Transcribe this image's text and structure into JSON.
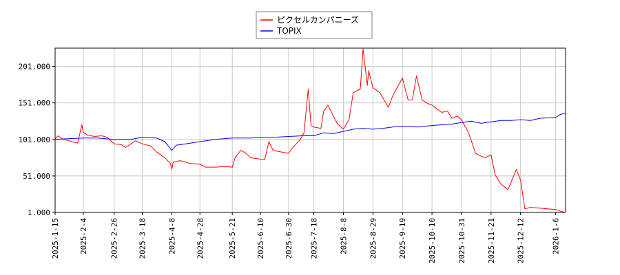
{
  "chart_data": {
    "type": "line",
    "legend_position": "top-center",
    "grid": true,
    "ylim": [
      1.0,
      226.0
    ],
    "y_ticks": [
      "1.000",
      "51.000",
      "101.000",
      "151.000",
      "201.000"
    ],
    "x_ticks": [
      "2025-1-15",
      "2025-2-4",
      "2025-2-26",
      "2025-3-18",
      "2025-4-8",
      "2025-4-28",
      "2025-5-21",
      "2025-6-10",
      "2025-6-30",
      "2025-7-18",
      "2025-8-8",
      "2025-8-29",
      "2025-9-19",
      "2025-10-10",
      "2025-10-31",
      "2025-11-21",
      "2025-12-12",
      "2026-1-6"
    ],
    "series": [
      {
        "name": "ピクセルカンパニーズ",
        "color": "#ff0000",
        "points": [
          [
            "2025-1-15",
            101
          ],
          [
            "2025-1-17",
            106
          ],
          [
            "2025-1-21",
            101
          ],
          [
            "2025-1-27",
            98
          ],
          [
            "2025-1-31",
            96
          ],
          [
            "2025-2-3",
            121
          ],
          [
            "2025-2-4",
            111
          ],
          [
            "2025-2-7",
            107
          ],
          [
            "2025-2-12",
            105
          ],
          [
            "2025-2-17",
            106
          ],
          [
            "2025-2-21",
            104
          ],
          [
            "2025-2-26",
            95
          ],
          [
            "2025-3-3",
            94
          ],
          [
            "2025-3-6",
            90
          ],
          [
            "2025-3-10",
            95
          ],
          [
            "2025-3-13",
            99
          ],
          [
            "2025-3-18",
            95
          ],
          [
            "2025-3-24",
            92
          ],
          [
            "2025-3-28",
            84
          ],
          [
            "2025-4-3",
            76
          ],
          [
            "2025-4-7",
            68
          ],
          [
            "2025-4-8",
            60
          ],
          [
            "2025-4-9",
            70
          ],
          [
            "2025-4-14",
            72
          ],
          [
            "2025-4-21",
            68
          ],
          [
            "2025-4-28",
            67
          ],
          [
            "2025-5-2",
            63
          ],
          [
            "2025-5-9",
            63
          ],
          [
            "2025-5-16",
            64
          ],
          [
            "2025-5-21",
            63
          ],
          [
            "2025-5-23",
            76
          ],
          [
            "2025-5-27",
            86
          ],
          [
            "2025-5-30",
            83
          ],
          [
            "2025-6-3",
            76
          ],
          [
            "2025-6-6",
            75
          ],
          [
            "2025-6-10",
            74
          ],
          [
            "2025-6-13",
            73
          ],
          [
            "2025-6-16",
            98
          ],
          [
            "2025-6-19",
            86
          ],
          [
            "2025-6-24",
            84
          ],
          [
            "2025-6-30",
            82
          ],
          [
            "2025-7-3",
            90
          ],
          [
            "2025-7-8",
            100
          ],
          [
            "2025-7-11",
            110
          ],
          [
            "2025-7-14",
            170
          ],
          [
            "2025-7-16",
            120
          ],
          [
            "2025-7-18",
            118
          ],
          [
            "2025-7-23",
            116
          ],
          [
            "2025-7-25",
            140
          ],
          [
            "2025-7-28",
            148
          ],
          [
            "2025-8-1",
            132
          ],
          [
            "2025-8-4",
            122
          ],
          [
            "2025-8-8",
            115
          ],
          [
            "2025-8-12",
            128
          ],
          [
            "2025-8-15",
            165
          ],
          [
            "2025-8-20",
            170
          ],
          [
            "2025-8-22",
            225
          ],
          [
            "2025-8-25",
            175
          ],
          [
            "2025-8-26",
            195
          ],
          [
            "2025-8-29",
            172
          ],
          [
            "2025-9-3",
            165
          ],
          [
            "2025-9-9",
            145
          ],
          [
            "2025-9-12",
            160
          ],
          [
            "2025-9-16",
            175
          ],
          [
            "2025-9-19",
            185
          ],
          [
            "2025-9-23",
            155
          ],
          [
            "2025-9-26",
            155
          ],
          [
            "2025-9-29",
            188
          ],
          [
            "2025-10-3",
            155
          ],
          [
            "2025-10-7",
            150
          ],
          [
            "2025-10-10",
            148
          ],
          [
            "2025-10-14",
            142
          ],
          [
            "2025-10-17",
            138
          ],
          [
            "2025-10-21",
            140
          ],
          [
            "2025-10-24",
            130
          ],
          [
            "2025-10-28",
            133
          ],
          [
            "2025-10-31",
            128
          ],
          [
            "2025-11-5",
            110
          ],
          [
            "2025-11-10",
            82
          ],
          [
            "2025-11-14",
            78
          ],
          [
            "2025-11-17",
            76
          ],
          [
            "2025-11-21",
            80
          ],
          [
            "2025-11-24",
            52
          ],
          [
            "2025-11-28",
            40
          ],
          [
            "2025-12-3",
            32
          ],
          [
            "2025-12-9",
            60
          ],
          [
            "2025-12-12",
            45
          ],
          [
            "2025-12-15",
            6
          ],
          [
            "2025-12-19",
            8
          ],
          [
            "2025-12-25",
            7
          ],
          [
            "2025-12-31",
            6
          ],
          [
            "2026-1-6",
            5
          ],
          [
            "2026-1-9",
            3
          ],
          [
            "2026-1-13",
            1
          ]
        ]
      },
      {
        "name": "TOPIX",
        "color": "#0000ff",
        "points": [
          [
            "2025-1-15",
            101
          ],
          [
            "2025-1-24",
            102
          ],
          [
            "2025-2-4",
            103
          ],
          [
            "2025-2-14",
            103
          ],
          [
            "2025-2-26",
            101
          ],
          [
            "2025-3-10",
            101
          ],
          [
            "2025-3-18",
            104
          ],
          [
            "2025-3-28",
            103
          ],
          [
            "2025-4-3",
            98
          ],
          [
            "2025-4-8",
            86
          ],
          [
            "2025-4-11",
            93
          ],
          [
            "2025-4-18",
            95
          ],
          [
            "2025-4-28",
            98
          ],
          [
            "2025-5-9",
            101
          ],
          [
            "2025-5-21",
            103
          ],
          [
            "2025-6-3",
            103
          ],
          [
            "2025-6-10",
            104
          ],
          [
            "2025-6-20",
            104
          ],
          [
            "2025-6-30",
            105
          ],
          [
            "2025-7-10",
            106
          ],
          [
            "2025-7-18",
            106
          ],
          [
            "2025-7-25",
            110
          ],
          [
            "2025-8-1",
            109
          ],
          [
            "2025-8-8",
            112
          ],
          [
            "2025-8-15",
            115
          ],
          [
            "2025-8-22",
            116
          ],
          [
            "2025-8-29",
            115
          ],
          [
            "2025-9-5",
            116
          ],
          [
            "2025-9-12",
            118
          ],
          [
            "2025-9-19",
            119
          ],
          [
            "2025-9-30",
            118
          ],
          [
            "2025-10-10",
            120
          ],
          [
            "2025-10-17",
            121
          ],
          [
            "2025-10-24",
            122
          ],
          [
            "2025-10-31",
            124
          ],
          [
            "2025-11-7",
            126
          ],
          [
            "2025-11-14",
            123
          ],
          [
            "2025-11-21",
            125
          ],
          [
            "2025-11-28",
            127
          ],
          [
            "2025-12-5",
            127
          ],
          [
            "2025-12-12",
            128
          ],
          [
            "2025-12-19",
            127
          ],
          [
            "2025-12-26",
            130
          ],
          [
            "2026-1-6",
            131
          ],
          [
            "2026-1-9",
            135
          ],
          [
            "2026-1-13",
            137
          ]
        ]
      }
    ]
  }
}
